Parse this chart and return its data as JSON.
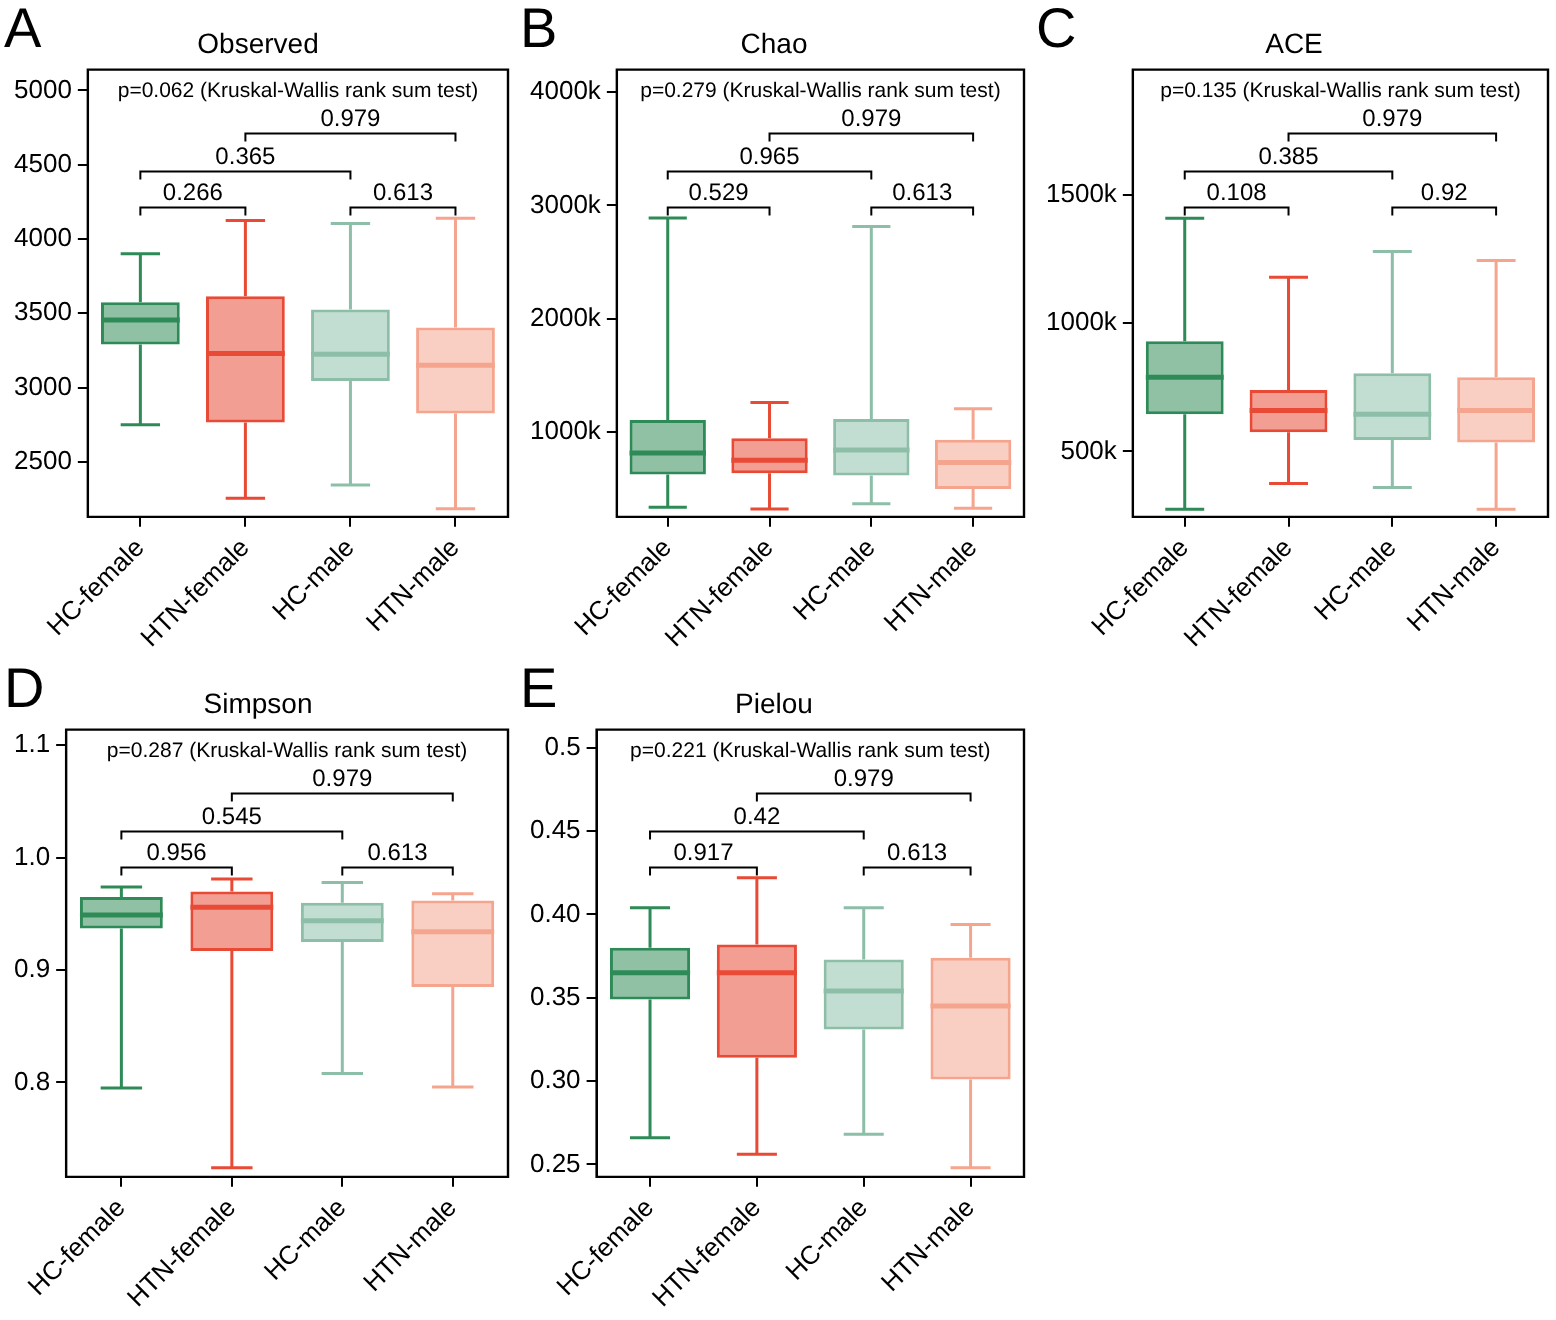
{
  "chart_data": [
    {
      "type": "box",
      "title": "Observed",
      "categories": [
        "HC-female",
        "HTN-female",
        "HC-male",
        "HTN-male"
      ],
      "colors": [
        "#2e8b57",
        "#e84a35",
        "#8dbfa8",
        "#f5a58e"
      ],
      "boxes": [
        {
          "low": 2750,
          "q1": 3290,
          "median": 3455,
          "q3": 3575,
          "high": 3900
        },
        {
          "low": 2255,
          "q1": 2765,
          "median": 3230,
          "q3": 3615,
          "high": 4125
        },
        {
          "low": 2345,
          "q1": 3045,
          "median": 3225,
          "q3": 3525,
          "high": 4105
        },
        {
          "low": 2185,
          "q1": 2825,
          "median": 3150,
          "q3": 3405,
          "high": 4140
        }
      ],
      "ylim": [
        2130,
        5140
      ],
      "yticks": [
        2500,
        3000,
        3500,
        4000,
        4500,
        5000
      ],
      "annotations": [
        "A",
        "p=0.062 (Kruskal-Wallis rank sum test)",
        "0.979",
        "0.365",
        "0.266",
        "0.613"
      ]
    },
    {
      "type": "box",
      "title": "Chao",
      "categories": [
        "HC-female",
        "HTN-female",
        "HC-male",
        "HTN-male"
      ],
      "colors": [
        "#2e8b57",
        "#e84a35",
        "#8dbfa8",
        "#f5a58e"
      ],
      "boxes": [
        {
          "low": 335,
          "q1": 625,
          "median": 815,
          "q3": 1105,
          "high": 2890
        },
        {
          "low": 320,
          "q1": 635,
          "median": 750,
          "q3": 945,
          "high": 1260
        },
        {
          "low": 365,
          "q1": 615,
          "median": 840,
          "q3": 1115,
          "high": 2815
        },
        {
          "low": 325,
          "q1": 495,
          "median": 730,
          "q3": 930,
          "high": 1205
        }
      ],
      "ylim": [
        250,
        4200
      ],
      "yticks": [
        {
          "value": 1000,
          "label": "1000k"
        },
        {
          "value": 2000,
          "label": "2000k"
        },
        {
          "value": 3000,
          "label": "3000k"
        },
        {
          "value": 4000,
          "label": "4000k"
        }
      ],
      "annotations": [
        "B",
        "p=0.279 (Kruskal-Wallis rank sum test)",
        "0.979",
        "0.965",
        "0.529",
        "0.613"
      ]
    },
    {
      "type": "box",
      "title": "ACE",
      "categories": [
        "HC-female",
        "HTN-female",
        "HC-male",
        "HTN-male"
      ],
      "colors": [
        "#2e8b57",
        "#e84a35",
        "#8dbfa8",
        "#f5a58e"
      ],
      "boxes": [
        {
          "low": 275,
          "q1": 645,
          "median": 790,
          "q3": 930,
          "high": 1410
        },
        {
          "low": 375,
          "q1": 575,
          "median": 660,
          "q3": 740,
          "high": 1180
        },
        {
          "low": 360,
          "q1": 545,
          "median": 645,
          "q3": 805,
          "high": 1280
        },
        {
          "low": 275,
          "q1": 535,
          "median": 660,
          "q3": 790,
          "high": 1245
        }
      ],
      "ylim": [
        245,
        1990
      ],
      "yticks": [
        {
          "value": 500,
          "label": "500k"
        },
        {
          "value": 1000,
          "label": "1000k"
        },
        {
          "value": 1500,
          "label": "1500k"
        }
      ],
      "annotations": [
        "C",
        "p=0.135 (Kruskal-Wallis rank sum test)",
        "0.979",
        "0.385",
        "0.108",
        "0.92"
      ]
    },
    {
      "type": "box",
      "title": "Simpson",
      "categories": [
        "HC-female",
        "HTN-female",
        "HC-male",
        "HTN-male"
      ],
      "colors": [
        "#2e8b57",
        "#e84a35",
        "#8dbfa8",
        "#f5a58e"
      ],
      "boxes": [
        {
          "low": 0.795,
          "q1": 0.937,
          "median": 0.949,
          "q3": 0.965,
          "high": 0.974
        },
        {
          "low": 0.724,
          "q1": 0.917,
          "median": 0.956,
          "q3": 0.97,
          "high": 0.981
        },
        {
          "low": 0.808,
          "q1": 0.925,
          "median": 0.944,
          "q3": 0.96,
          "high": 0.978
        },
        {
          "low": 0.796,
          "q1": 0.885,
          "median": 0.934,
          "q3": 0.962,
          "high": 0.968
        }
      ],
      "ylim": [
        0.716,
        1.114
      ],
      "yticks": [
        {
          "value": 0.8,
          "label": "0.8"
        },
        {
          "value": 0.9,
          "label": "0.9"
        },
        {
          "value": 1,
          "label": "1.0"
        },
        {
          "value": 1.1,
          "label": "1.1"
        }
      ],
      "annotations": [
        "D",
        "p=0.287 (Kruskal-Wallis rank sum test)",
        "0.979",
        "0.545",
        "0.956",
        "0.613"
      ]
    },
    {
      "type": "box",
      "title": "Pielou",
      "categories": [
        "HC-female",
        "HTN-female",
        "HC-male",
        "HTN-male"
      ],
      "colors": [
        "#2e8b57",
        "#e84a35",
        "#8dbfa8",
        "#f5a58e"
      ],
      "boxes": [
        {
          "low": 0.266,
          "q1": 0.349,
          "median": 0.365,
          "q3": 0.38,
          "high": 0.404
        },
        {
          "low": 0.256,
          "q1": 0.314,
          "median": 0.365,
          "q3": 0.382,
          "high": 0.422
        },
        {
          "low": 0.268,
          "q1": 0.331,
          "median": 0.354,
          "q3": 0.373,
          "high": 0.404
        },
        {
          "low": 0.248,
          "q1": 0.301,
          "median": 0.345,
          "q3": 0.374,
          "high": 0.394
        }
      ],
      "ylim": [
        0.2425,
        0.511
      ],
      "yticks": [
        {
          "value": 0.25,
          "label": "0.25"
        },
        {
          "value": 0.3,
          "label": "0.30"
        },
        {
          "value": 0.35,
          "label": "0.35"
        },
        {
          "value": 0.4,
          "label": "0.40"
        },
        {
          "value": 0.45,
          "label": "0.45"
        },
        {
          "value": 0.5,
          "label": "0.5"
        }
      ],
      "annotations": [
        "E",
        "p=0.221 (Kruskal-Wallis rank sum test)",
        "0.979",
        "0.42",
        "0.917",
        "0.613"
      ]
    }
  ]
}
